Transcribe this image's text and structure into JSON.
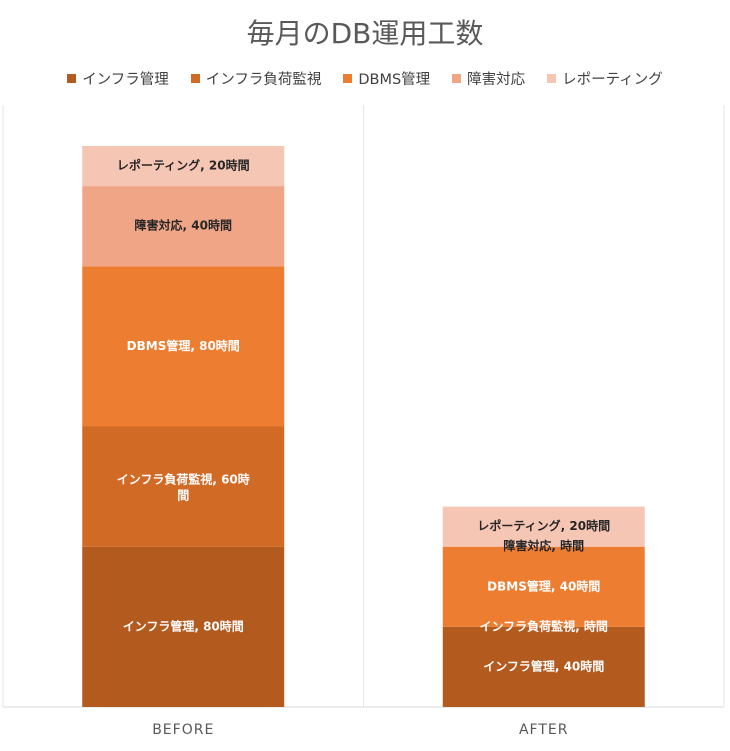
{
  "chart_data": {
    "type": "bar",
    "stacked": true,
    "title": "毎月のDB運用工数",
    "categories": [
      "BEFORE",
      "AFTER"
    ],
    "ylim": [
      0,
      300
    ],
    "grid": false,
    "legend_position": "top",
    "series": [
      {
        "name": "インフラ管理",
        "color": "#b35a1f",
        "values": [
          80,
          40
        ],
        "labels": [
          "インフラ管理, 80時間",
          "インフラ管理, 40時間"
        ]
      },
      {
        "name": "インフラ負荷監視",
        "color": "#d06a25",
        "values": [
          60,
          0
        ],
        "labels": [
          "インフラ負荷監視, 60時間",
          "インフラ負荷監視, 時間"
        ]
      },
      {
        "name": "DBMS管理",
        "color": "#ed7d31",
        "values": [
          80,
          40
        ],
        "labels": [
          "DBMS管理, 80時間",
          "DBMS管理, 40時間"
        ]
      },
      {
        "name": "障害対応",
        "color": "#f0a686",
        "values": [
          40,
          0
        ],
        "labels": [
          "障害対応, 40時間",
          "障害対応, 時間"
        ]
      },
      {
        "name": "レポーティング",
        "color": "#f6c6b5",
        "values": [
          20,
          20
        ],
        "labels": [
          "レポーティング, 20時間",
          "レポーティング, 20時間"
        ]
      }
    ]
  }
}
